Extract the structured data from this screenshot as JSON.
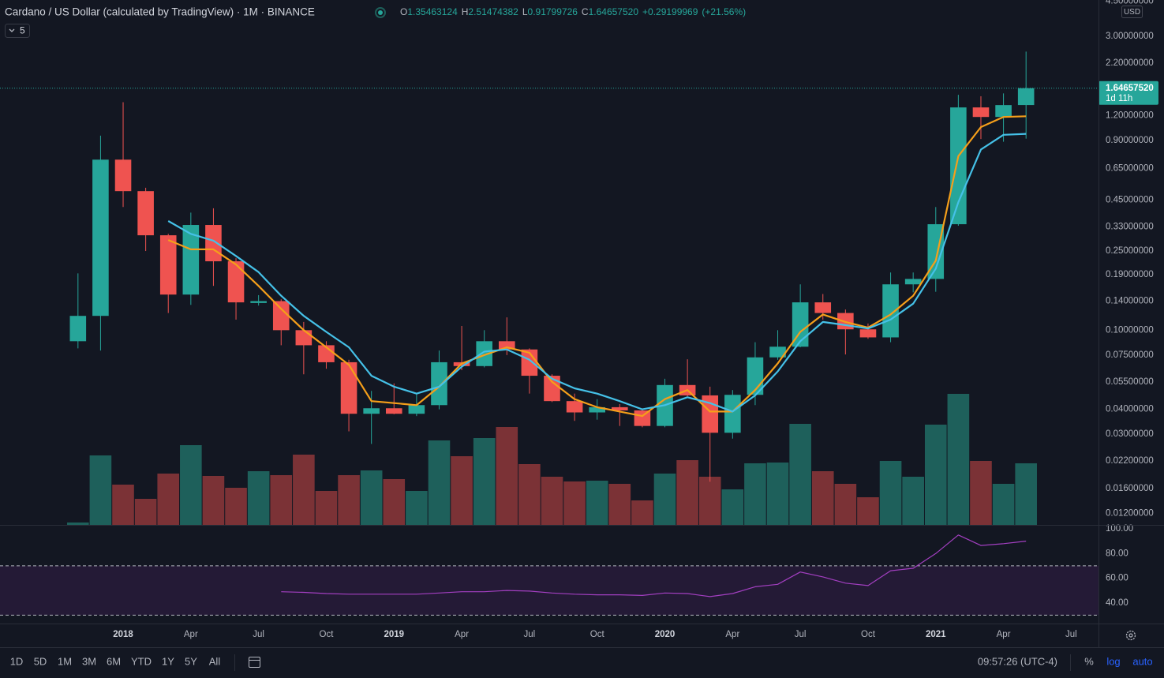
{
  "header": {
    "symbol": "Cardano / US Dollar (calculated by TradingView) · 1M · BINANCE",
    "ohlc_keys": [
      "O",
      "H",
      "L",
      "C"
    ],
    "change": "+0.29199969",
    "change_pct": "(+21.56%)",
    "indicator_count": "5"
  },
  "toolbar": {
    "ranges": [
      "1D",
      "5D",
      "1M",
      "3M",
      "6M",
      "YTD",
      "1Y",
      "5Y",
      "All"
    ],
    "clock": "09:57:26 (UTC-4)",
    "percent": "%",
    "log": "log",
    "auto": "auto"
  },
  "chart_data": {
    "type": "candlestick",
    "x": [
      "2017-11",
      "2017-12",
      "2018-01",
      "2018-02",
      "2018-03",
      "2018-04",
      "2018-05",
      "2018-06",
      "2018-07",
      "2018-08",
      "2018-09",
      "2018-10",
      "2018-11",
      "2018-12",
      "2019-01",
      "2019-02",
      "2019-03",
      "2019-04",
      "2019-05",
      "2019-06",
      "2019-07",
      "2019-08",
      "2019-09",
      "2019-10",
      "2019-11",
      "2019-12",
      "2020-01",
      "2020-02",
      "2020-03",
      "2020-04",
      "2020-05",
      "2020-06",
      "2020-07",
      "2020-08",
      "2020-09",
      "2020-10",
      "2020-11",
      "2020-12",
      "2021-01",
      "2021-02",
      "2021-03",
      "2021-04",
      "2021-05"
    ],
    "open": [
      0.088,
      0.118,
      0.72,
      0.5,
      0.3,
      0.151,
      0.338,
      0.222,
      0.137,
      0.14,
      0.1,
      0.084,
      0.069,
      0.038,
      0.0405,
      0.038,
      0.042,
      0.069,
      0.066,
      0.088,
      0.08,
      0.059,
      0.044,
      0.0386,
      0.041,
      0.0395,
      0.033,
      0.053,
      0.047,
      0.0305,
      0.0473,
      0.073,
      0.0826,
      0.138,
      0.122,
      0.101,
      0.092,
      0.17,
      0.181,
      0.341,
      1.318,
      1.18,
      1.35463124
    ],
    "high": [
      0.193,
      0.95,
      1.4,
      0.52,
      0.305,
      0.39,
      0.41,
      0.23,
      0.15,
      0.143,
      0.11,
      0.088,
      0.071,
      0.0495,
      0.054,
      0.048,
      0.079,
      0.105,
      0.1,
      0.116,
      0.081,
      0.06,
      0.048,
      0.045,
      0.0425,
      0.04,
      0.057,
      0.0714,
      0.052,
      0.05,
      0.087,
      0.1,
      0.17,
      0.152,
      0.127,
      0.108,
      0.195,
      0.195,
      0.416,
      1.525,
      1.5,
      1.55,
      2.51474382
    ],
    "low": [
      0.081,
      0.079,
      0.416,
      0.25,
      0.122,
      0.134,
      0.167,
      0.113,
      0.133,
      0.084,
      0.06,
      0.064,
      0.031,
      0.0268,
      0.0378,
      0.037,
      0.04,
      0.063,
      0.065,
      0.075,
      0.048,
      0.0435,
      0.035,
      0.0355,
      0.033,
      0.0325,
      0.0325,
      0.0465,
      0.0173,
      0.0285,
      0.042,
      0.071,
      0.082,
      0.113,
      0.0755,
      0.0905,
      0.087,
      0.155,
      0.156,
      0.335,
      0.914,
      0.886,
      0.91799726
    ],
    "close": [
      0.118,
      0.72,
      0.5,
      0.3,
      0.151,
      0.338,
      0.222,
      0.138,
      0.14,
      0.1,
      0.084,
      0.069,
      0.038,
      0.0405,
      0.038,
      0.042,
      0.069,
      0.066,
      0.088,
      0.08,
      0.059,
      0.044,
      0.0386,
      0.041,
      0.0395,
      0.033,
      0.053,
      0.047,
      0.0305,
      0.0473,
      0.073,
      0.0826,
      0.138,
      0.122,
      0.101,
      0.092,
      0.17,
      0.181,
      0.341,
      1.318,
      1.18,
      1.354,
      1.6465752
    ],
    "last_value_labels": {
      "open": "1.35463124",
      "high": "2.51474382",
      "low": "0.91799726",
      "close": "1.64657520"
    },
    "last_price_countdown": "1d 11h",
    "currency": "USD",
    "up_color": "#26a69a",
    "down_color": "#ef5350",
    "log_scale": true,
    "grid": false,
    "xlim": [
      "2017-08",
      "2021-08"
    ],
    "xticks": [
      {
        "value": "2018-01",
        "label": "2018"
      },
      {
        "value": "2018-04",
        "label": "Apr"
      },
      {
        "value": "2018-07",
        "label": "Jul"
      },
      {
        "value": "2018-10",
        "label": "Oct"
      },
      {
        "value": "2019-01",
        "label": "2019"
      },
      {
        "value": "2019-04",
        "label": "Apr"
      },
      {
        "value": "2019-07",
        "label": "Jul"
      },
      {
        "value": "2019-10",
        "label": "Oct"
      },
      {
        "value": "2020-01",
        "label": "2020"
      },
      {
        "value": "2020-04",
        "label": "Apr"
      },
      {
        "value": "2020-07",
        "label": "Jul"
      },
      {
        "value": "2020-10",
        "label": "Oct"
      },
      {
        "value": "2021-01",
        "label": "2021"
      },
      {
        "value": "2021-04",
        "label": "Apr"
      },
      {
        "value": "2021-07",
        "label": "Jul"
      }
    ],
    "ylim": [
      0.0105,
      4.57
    ],
    "yticks": [
      {
        "value": 4.5,
        "label": "4.50000000"
      },
      {
        "value": 3.0,
        "label": "3.00000000"
      },
      {
        "value": 2.2,
        "label": "2.20000000"
      },
      {
        "value": 1.2,
        "label": "1.20000000"
      },
      {
        "value": 0.9,
        "label": "0.90000000"
      },
      {
        "value": 0.65,
        "label": "0.65000000"
      },
      {
        "value": 0.45,
        "label": "0.45000000"
      },
      {
        "value": 0.33,
        "label": "0.33000000"
      },
      {
        "value": 0.25,
        "label": "0.25000000"
      },
      {
        "value": 0.19,
        "label": "0.19000000"
      },
      {
        "value": 0.14,
        "label": "0.14000000"
      },
      {
        "value": 0.1,
        "label": "0.10000000"
      },
      {
        "value": 0.075,
        "label": "0.07500000"
      },
      {
        "value": 0.055,
        "label": "0.05500000"
      },
      {
        "value": 0.04,
        "label": "0.04000000"
      },
      {
        "value": 0.03,
        "label": "0.03000000"
      },
      {
        "value": 0.022,
        "label": "0.02200000"
      },
      {
        "value": 0.016,
        "label": "0.01600000"
      },
      {
        "value": 0.012,
        "label": "0.01200000"
      }
    ],
    "moving_averages": [
      {
        "color": "#f59f1a",
        "values": [
          null,
          null,
          null,
          null,
          0.284,
          0.255,
          0.255,
          0.214,
          0.167,
          0.128,
          0.1,
          0.082,
          0.067,
          0.044,
          0.043,
          0.042,
          0.052,
          0.068,
          0.075,
          0.082,
          0.077,
          0.055,
          0.045,
          0.041,
          0.039,
          0.037,
          0.045,
          0.05,
          0.039,
          0.039,
          0.05,
          0.068,
          0.098,
          0.12,
          0.11,
          0.103,
          0.12,
          0.149,
          0.224,
          0.75,
          1.05,
          1.18,
          1.19
        ]
      },
      {
        "color": "#45c1e8",
        "values": [
          null,
          null,
          null,
          null,
          0.354,
          0.305,
          0.282,
          0.236,
          0.196,
          0.149,
          0.118,
          0.098,
          0.082,
          0.059,
          0.052,
          0.048,
          0.052,
          0.0655,
          0.078,
          0.08,
          0.071,
          0.057,
          0.051,
          0.048,
          0.044,
          0.04,
          0.042,
          0.046,
          0.043,
          0.039,
          0.047,
          0.062,
          0.088,
          0.11,
          0.106,
          0.102,
          0.113,
          0.136,
          0.204,
          0.44,
          0.81,
          0.96,
          0.97
        ]
      }
    ],
    "volume": {
      "up_color": "#1e605b",
      "down_color": "#7b3236",
      "ylim": [
        0,
        665
      ],
      "values": [
        3,
        88,
        51,
        33,
        65,
        101,
        62,
        47,
        68,
        63,
        89,
        43,
        63,
        69,
        58,
        43,
        107,
        87,
        110,
        124,
        77,
        61,
        55,
        56,
        52,
        31,
        65,
        82,
        61,
        45,
        78,
        79,
        128,
        68,
        52,
        35,
        81,
        61,
        127,
        166,
        81,
        52,
        78
      ]
    },
    "rsi": {
      "color": "#a33fc1",
      "band_color": "#241a36",
      "ylim": [
        23.2,
        103.2
      ],
      "yticks": [
        {
          "value": 100,
          "label": "100.00"
        },
        {
          "value": 80,
          "label": "80.00"
        },
        {
          "value": 60,
          "label": "60.00"
        },
        {
          "value": 40,
          "label": "40.00"
        }
      ],
      "bands": [
        30,
        70
      ],
      "values": [
        null,
        null,
        null,
        null,
        null,
        null,
        null,
        null,
        null,
        49,
        48.5,
        47.5,
        47,
        47,
        47,
        47,
        48,
        49,
        49,
        50,
        49.5,
        48,
        47,
        46.5,
        46.5,
        46,
        48,
        47.5,
        45,
        47.5,
        53,
        55,
        65,
        61,
        56,
        54,
        66,
        68,
        80,
        95,
        86.5,
        88,
        90
      ]
    }
  }
}
